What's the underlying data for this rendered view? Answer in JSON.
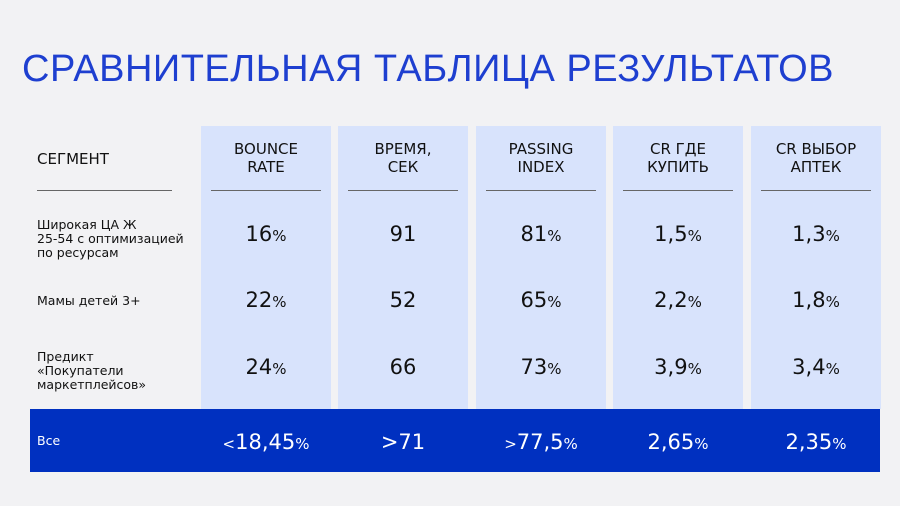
{
  "title": "СРАВНИТЕЛЬНАЯ ТАБЛИЦА РЕЗУЛЬТАТОВ",
  "segment_header": "СЕГМЕНТ",
  "columns": [
    "BOUNCE\nRATE",
    "ВРЕМЯ,\nСЕК",
    "PASSING\nINDEX",
    "CR ГДЕ\nКУПИТЬ",
    "CR ВЫБОР\nАПТЕК"
  ],
  "rows": [
    {
      "segment": "Широкая ЦА Ж\n25-54 с оптимизацией\nпо ресурсам",
      "values": [
        "16",
        "91",
        "81",
        "1,5",
        "1,3"
      ],
      "units": [
        "%",
        "",
        "%",
        "%",
        "%"
      ]
    },
    {
      "segment": "Мамы детей 3+",
      "values": [
        "22",
        "52",
        "65",
        "2,2",
        "1,8"
      ],
      "units": [
        "%",
        "",
        "%",
        "%",
        "%"
      ]
    },
    {
      "segment": "Предикт\n«Покупатели\nмаркетплейсов»",
      "values": [
        "24",
        "66",
        "73",
        "3,9",
        "3,4"
      ],
      "units": [
        "%",
        "",
        "%",
        "%",
        "%"
      ]
    }
  ],
  "total": {
    "segment": "Все",
    "prefixes": [
      "<",
      "",
      ">",
      "",
      ""
    ],
    "values": [
      "18,45",
      ">71",
      "77,5",
      "2,65",
      "2,35"
    ],
    "units": [
      "%",
      "",
      "%",
      "%",
      "%"
    ]
  },
  "colors": {
    "title": "#1e3fd0",
    "column_bg": "#d8e3fc",
    "total_bg": "#0030c0"
  }
}
